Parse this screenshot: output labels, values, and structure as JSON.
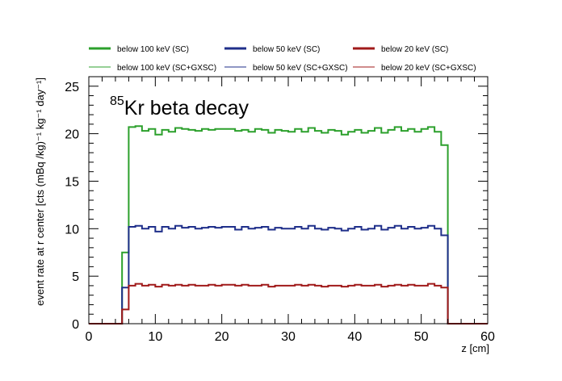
{
  "chart_data": {
    "type": "line",
    "title": "",
    "annotation": {
      "superscript": "85",
      "text": "Kr beta decay"
    },
    "xlabel": "z [cm]",
    "ylabel": "event rate at r center [cts (mBq /kg)⁻¹ kg⁻¹ day⁻¹]",
    "xlim": [
      0,
      60
    ],
    "ylim": [
      0,
      26
    ],
    "x_ticks": [
      0,
      10,
      20,
      30,
      40,
      50,
      60
    ],
    "y_ticks": [
      0,
      5,
      10,
      15,
      20,
      25
    ],
    "x_tick_labels": [
      "0",
      "10",
      "20",
      "30",
      "40",
      "50",
      "60"
    ],
    "y_tick_labels": [
      "0",
      "5",
      "10",
      "15",
      "20",
      "25"
    ],
    "grid": false,
    "legend_position": "top",
    "bin_width": 1,
    "bin_start": 0,
    "series": [
      {
        "name": "below 100 keV (SC)",
        "color": "#2ca02c",
        "style": "thick",
        "values": [
          0,
          0,
          0,
          0,
          0,
          7.5,
          20.7,
          20.8,
          20.3,
          20.5,
          19.9,
          20.4,
          20.2,
          20.6,
          20.5,
          20.4,
          20.3,
          20.5,
          20.4,
          20.5,
          20.5,
          20.5,
          20.3,
          20.4,
          20.2,
          20.5,
          20.4,
          20.1,
          20.4,
          20.3,
          20.2,
          20.5,
          20.2,
          20.6,
          20.3,
          20.1,
          20.4,
          20.3,
          19.9,
          20.2,
          20.4,
          20.1,
          20.3,
          20.6,
          20.1,
          20.4,
          20.7,
          20.3,
          20.5,
          20.2,
          20.5,
          20.7,
          20.2,
          18.8,
          0,
          0,
          0,
          0,
          0,
          0
        ]
      },
      {
        "name": "below 50 keV (SC)",
        "color": "#1f2f8a",
        "style": "thick",
        "values": [
          0,
          0,
          0,
          0,
          0,
          3.8,
          10.2,
          10.3,
          10.0,
          10.2,
          9.7,
          10.2,
          10.0,
          10.3,
          10.1,
          10.2,
          10.0,
          10.1,
          10.2,
          10.1,
          10.2,
          10.2,
          9.9,
          10.2,
          10.0,
          10.1,
          10.2,
          9.9,
          10.1,
          10.0,
          10.0,
          10.2,
          10.0,
          10.3,
          10.0,
          9.9,
          10.1,
          10.0,
          9.8,
          10.0,
          10.2,
          9.9,
          10.0,
          10.3,
          9.9,
          10.1,
          10.3,
          10.0,
          10.2,
          10.0,
          10.1,
          10.3,
          10.0,
          9.3,
          0,
          0,
          0,
          0,
          0,
          0
        ]
      },
      {
        "name": "below 20 keV (SC)",
        "color": "#a01a1a",
        "style": "thick",
        "values": [
          0,
          0,
          0,
          0,
          0,
          1.5,
          4.0,
          4.2,
          4.0,
          4.1,
          3.9,
          4.1,
          4.0,
          4.1,
          4.0,
          4.1,
          4.0,
          4.0,
          4.1,
          4.0,
          4.1,
          4.1,
          4.0,
          4.1,
          4.0,
          4.0,
          4.1,
          3.9,
          4.0,
          4.0,
          4.0,
          4.1,
          4.0,
          4.1,
          4.0,
          3.9,
          4.0,
          4.0,
          3.9,
          4.0,
          4.1,
          4.0,
          4.0,
          4.1,
          3.9,
          4.0,
          4.1,
          4.0,
          4.1,
          4.0,
          4.0,
          4.2,
          4.0,
          3.8,
          0,
          0,
          0,
          0,
          0,
          0
        ]
      },
      {
        "name": "below 100 keV (SC+GXSC)",
        "color": "#2ca02c",
        "style": "thin",
        "same_as": "below 100 keV (SC)"
      },
      {
        "name": "below 50 keV (SC+GXSC)",
        "color": "#1f2f8a",
        "style": "thin",
        "same_as": "below 50 keV (SC)"
      },
      {
        "name": "below 20 keV (SC+GXSC)",
        "color": "#a01a1a",
        "style": "thin",
        "same_as": "below 20 keV (SC)"
      }
    ]
  }
}
